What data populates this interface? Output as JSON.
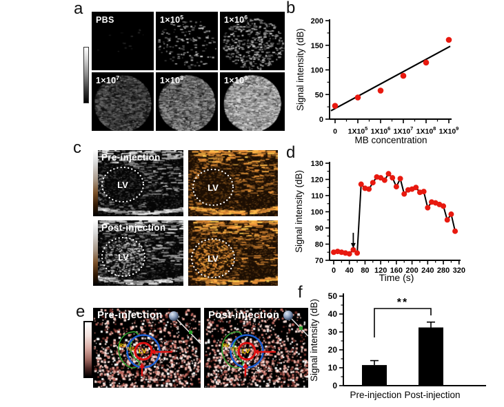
{
  "panels": {
    "a": {
      "letter": "a",
      "images": [
        {
          "label_base": "PBS",
          "label_exp": "",
          "texture": "a_pbs"
        },
        {
          "label_base": "1×10",
          "label_exp": "5",
          "texture": "a_1e5"
        },
        {
          "label_base": "1×10",
          "label_exp": "6",
          "texture": "a_1e6"
        },
        {
          "label_base": "1×10",
          "label_exp": "7",
          "texture": "a_1e7"
        },
        {
          "label_base": "1×10",
          "label_exp": "8",
          "texture": "a_1e8"
        },
        {
          "label_base": "1×10",
          "label_exp": "9",
          "texture": "a_1e9"
        }
      ]
    },
    "b": {
      "letter": "b"
    },
    "c": {
      "letter": "c",
      "row1_label": "Pre-injection",
      "row2_label": "Post-injection",
      "lv_label": "LV"
    },
    "d": {
      "letter": "d"
    },
    "e": {
      "letter": "e",
      "left_label": "Pre-injection",
      "right_label": "Post-injection",
      "rv_label": "RV",
      "ivs_label": "IVS",
      "lv_label": "LV"
    },
    "f": {
      "letter": "f"
    }
  },
  "chart_data": [
    {
      "id": "b",
      "type": "scatter",
      "title": "",
      "categories": [
        {
          "base": "0",
          "exp": ""
        },
        {
          "base": "1X10",
          "exp": "5"
        },
        {
          "base": "1X10",
          "exp": "6"
        },
        {
          "base": "1X10",
          "exp": "7"
        },
        {
          "base": "1X10",
          "exp": "8"
        },
        {
          "base": "1X10",
          "exp": "9"
        }
      ],
      "values": [
        27,
        44,
        58,
        88,
        115,
        161
      ],
      "fit_line": {
        "y_start": 17,
        "y_end": 148
      },
      "xlabel": "MB concentration",
      "ylabel": "Signal intensity (dB)",
      "ylim": [
        0,
        200
      ],
      "yticks": [
        0,
        50,
        100,
        150,
        200
      ],
      "yminors": [
        25,
        75,
        125,
        175
      ],
      "point_color": "#e8190f",
      "legend": "none",
      "grid": false
    },
    {
      "id": "d",
      "type": "line-scatter",
      "x": [
        0,
        10,
        20,
        30,
        40,
        50,
        60,
        70,
        80,
        90,
        100,
        110,
        120,
        130,
        140,
        150,
        160,
        170,
        180,
        190,
        200,
        210,
        220,
        230,
        240,
        250,
        260,
        270,
        280,
        290,
        300,
        310
      ],
      "values": [
        75,
        75.5,
        75,
        74.5,
        74,
        76.5,
        74.5,
        117,
        114.5,
        114,
        118,
        121.5,
        121,
        119.5,
        123.5,
        121,
        115.5,
        120.5,
        111,
        113.5,
        114,
        115,
        112,
        112.5,
        102.5,
        106,
        105.5,
        104.5,
        103.5,
        95,
        98.5,
        88
      ],
      "xlabel": "Time (s)",
      "ylabel": "Signal intensity (dB)",
      "xlim": [
        0,
        320
      ],
      "xticks": [
        0,
        40,
        80,
        120,
        160,
        200,
        240,
        280,
        320
      ],
      "ylim": [
        70,
        130
      ],
      "yticks": [
        70,
        80,
        90,
        100,
        110,
        120,
        130
      ],
      "annotation": {
        "type": "arrow-down",
        "x": 50,
        "tail_y": 87,
        "tip_y": 78.5
      },
      "point_color": "#e8190f",
      "line_color": "#000000",
      "legend": "none",
      "grid": false
    },
    {
      "id": "f",
      "type": "bar",
      "categories": [
        "Pre-injection",
        "Post-injection"
      ],
      "values": [
        11.5,
        32.5
      ],
      "errors": [
        2.5,
        3
      ],
      "significance": "**",
      "ylabel": "Signal intensity (dB)",
      "ylim": [
        0,
        50
      ],
      "yticks": [
        0,
        10,
        20,
        30,
        40,
        50
      ],
      "bar_color": "#000000",
      "legend": "none",
      "grid": false
    }
  ],
  "colors": {
    "point_red": "#e8190f",
    "overlay_blue": "#1d5fd2",
    "overlay_red": "#e01212",
    "overlay_green": "#2fa32f",
    "overlay_yellow": "#ffd400",
    "bar_black": "#000000"
  },
  "textures": {
    "a_pbs": {
      "style": "sparse",
      "seed": 11,
      "count": 14,
      "gmin": 15,
      "gmax": 55
    },
    "a_1e5": {
      "style": "sparse",
      "seed": 22,
      "count": 150,
      "gmin": 50,
      "gmax": 215
    },
    "a_1e6": {
      "style": "sparse",
      "seed": 33,
      "count": 430,
      "gmin": 55,
      "gmax": 225
    },
    "a_1e7": {
      "style": "disc",
      "seed": 44,
      "count": 1500,
      "gmin": 25,
      "gmax": 115,
      "base": 16
    },
    "a_1e8": {
      "style": "disc",
      "seed": 55,
      "count": 1700,
      "gmin": 55,
      "gmax": 175,
      "base": 30
    },
    "a_1e9": {
      "style": "disc",
      "seed": 66,
      "count": 2000,
      "gmin": 105,
      "gmax": 225,
      "base": 70
    },
    "c1": {
      "style": "cardiac",
      "tone": "gray",
      "seed": 77,
      "lv_bright": false,
      "lv": [
        0.33,
        0.52,
        0.22
      ]
    },
    "c2": {
      "style": "cardiac",
      "tone": "orange",
      "seed": 88,
      "lv_bright": false,
      "lv": [
        0.28,
        0.56,
        0.22
      ]
    },
    "c3": {
      "style": "cardiac",
      "tone": "gray",
      "seed": 99,
      "lv_bright": true,
      "lv": [
        0.34,
        0.56,
        0.23
      ]
    },
    "c4": {
      "style": "cardiac",
      "tone": "orange",
      "seed": 111,
      "lv_bright": true,
      "lv": [
        0.28,
        0.58,
        0.23
      ]
    },
    "e1": {
      "style": "pink",
      "seed": 123,
      "count": 1050
    },
    "e2": {
      "style": "pink",
      "seed": 321,
      "count": 1050
    }
  }
}
